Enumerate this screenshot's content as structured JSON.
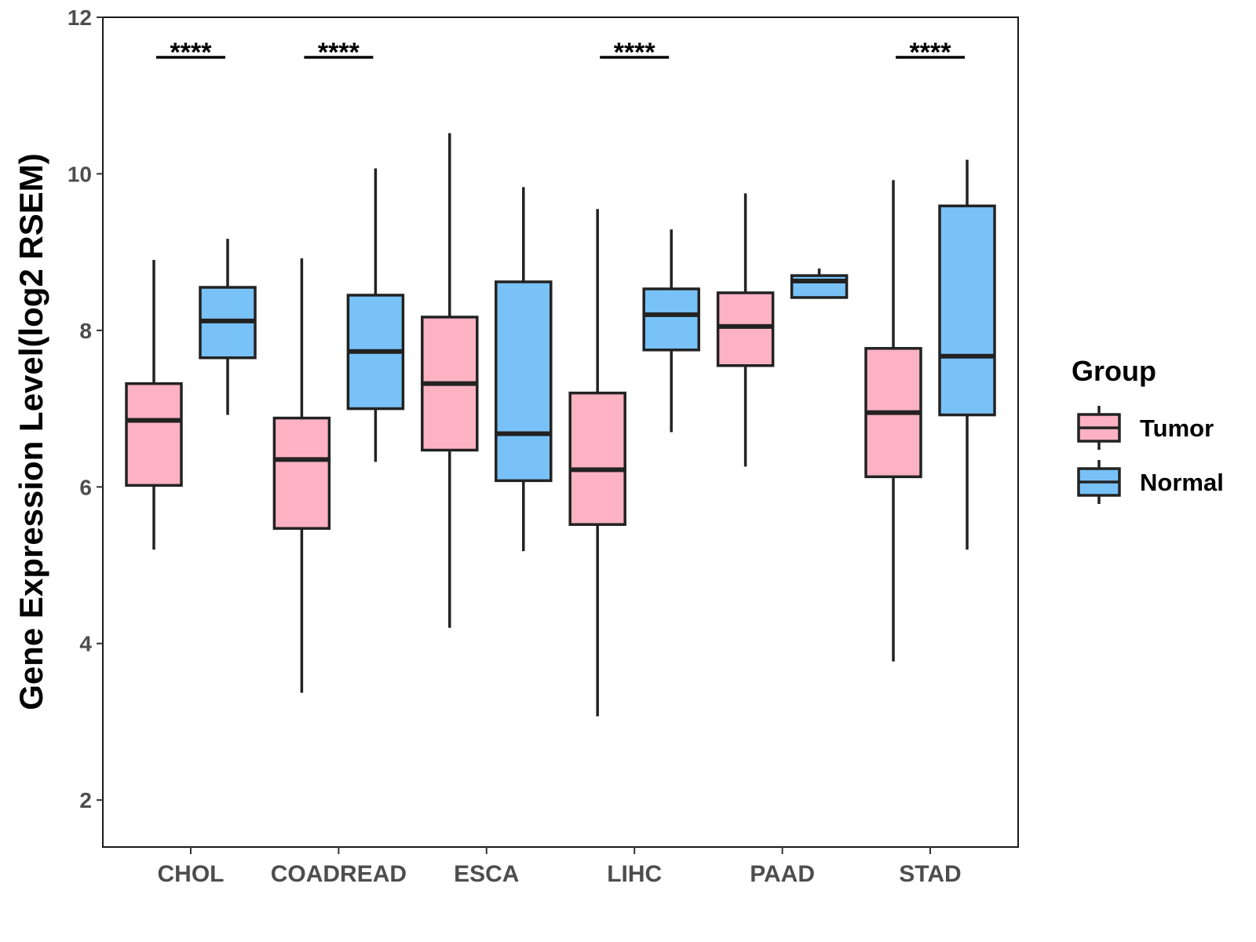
{
  "chart_data": {
    "type": "boxplot",
    "title": "",
    "xlabel": "",
    "ylabel": "Gene Expression Level(log2 RSEM)",
    "ylim": [
      1.4,
      12
    ],
    "yticks": [
      "2",
      "4",
      "6",
      "8",
      "10",
      "12"
    ],
    "grid": false,
    "legend": {
      "title": "Group",
      "position": "right",
      "entries": [
        {
          "name": "Tumor",
          "color": "#fcb2c3"
        },
        {
          "name": "Normal",
          "color": "#79c2f8"
        }
      ]
    },
    "categories": [
      "CHOL",
      "COADREAD",
      "ESCA",
      "LIHC",
      "PAAD",
      "STAD"
    ],
    "series": [
      {
        "name": "Tumor",
        "color": "#fcb2c3",
        "boxes": [
          {
            "min": 5.2,
            "q1": 6.02,
            "median": 6.85,
            "q3": 7.32,
            "max": 8.9
          },
          {
            "min": 3.37,
            "q1": 5.47,
            "median": 6.35,
            "q3": 6.88,
            "max": 8.92
          },
          {
            "min": 4.2,
            "q1": 6.47,
            "median": 7.32,
            "q3": 8.17,
            "max": 10.52
          },
          {
            "min": 3.07,
            "q1": 5.52,
            "median": 6.22,
            "q3": 7.2,
            "max": 9.55
          },
          {
            "min": 6.26,
            "q1": 7.55,
            "median": 8.05,
            "q3": 8.48,
            "max": 9.75
          },
          {
            "min": 3.77,
            "q1": 6.13,
            "median": 6.95,
            "q3": 7.77,
            "max": 9.92
          }
        ]
      },
      {
        "name": "Normal",
        "color": "#79c2f8",
        "boxes": [
          {
            "min": 6.92,
            "q1": 7.65,
            "median": 8.12,
            "q3": 8.55,
            "max": 9.17
          },
          {
            "min": 6.32,
            "q1": 7.0,
            "median": 7.73,
            "q3": 8.45,
            "max": 10.07
          },
          {
            "min": 5.18,
            "q1": 6.08,
            "median": 6.68,
            "q3": 8.62,
            "max": 9.83
          },
          {
            "min": 6.7,
            "q1": 7.75,
            "median": 8.2,
            "q3": 8.53,
            "max": 9.29
          },
          {
            "min": 8.42,
            "q1": 8.42,
            "median": 8.63,
            "q3": 8.7,
            "max": 8.79
          },
          {
            "min": 5.2,
            "q1": 6.92,
            "median": 7.67,
            "q3": 9.59,
            "max": 10.18
          }
        ]
      }
    ],
    "annotations": [
      {
        "category": "CHOL",
        "label": "****"
      },
      {
        "category": "COADREAD",
        "label": "****"
      },
      {
        "category": "LIHC",
        "label": "****"
      },
      {
        "category": "STAD",
        "label": "****"
      }
    ]
  }
}
